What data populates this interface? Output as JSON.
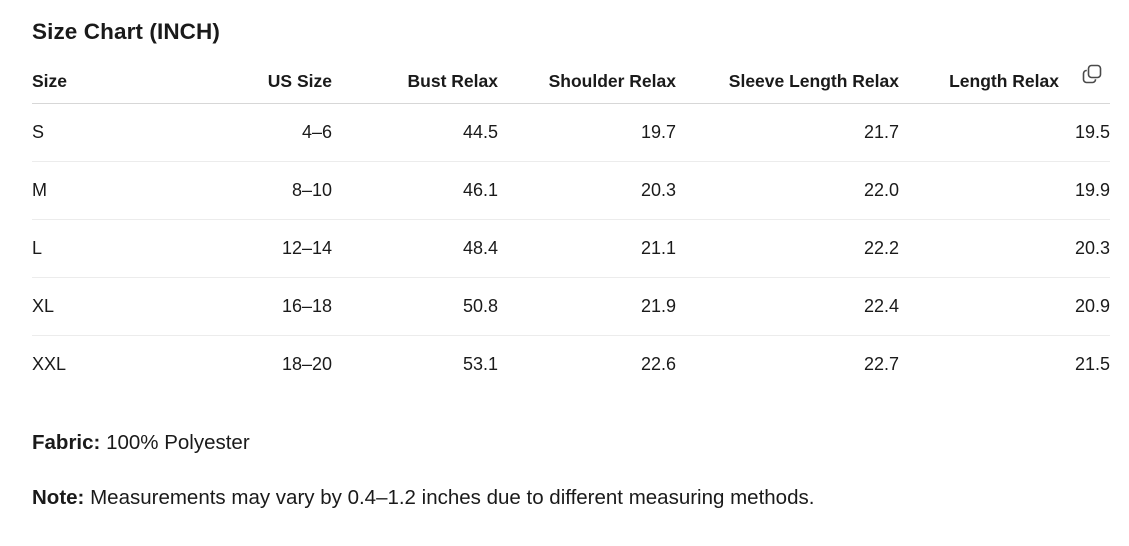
{
  "title": "Size Chart (INCH)",
  "table": {
    "headers": [
      "Size",
      "US Size",
      "Bust Relax",
      "Shoulder Relax",
      "Sleeve Length Relax",
      "Length Relax"
    ],
    "rows": [
      [
        "S",
        "4–6",
        "44.5",
        "19.7",
        "21.7",
        "19.5"
      ],
      [
        "M",
        "8–10",
        "46.1",
        "20.3",
        "22.0",
        "19.9"
      ],
      [
        "L",
        "12–14",
        "48.4",
        "21.1",
        "22.2",
        "20.3"
      ],
      [
        "XL",
        "16–18",
        "50.8",
        "21.9",
        "22.4",
        "20.9"
      ],
      [
        "XXL",
        "18–20",
        "53.1",
        "22.6",
        "22.7",
        "21.5"
      ]
    ]
  },
  "copy_icon": "copy-icon",
  "fabric": {
    "label": "Fabric:",
    "value": "100% Polyester"
  },
  "note": {
    "label": "Note:",
    "value": "Measurements may vary by 0.4–1.2 inches due to different measuring methods."
  }
}
